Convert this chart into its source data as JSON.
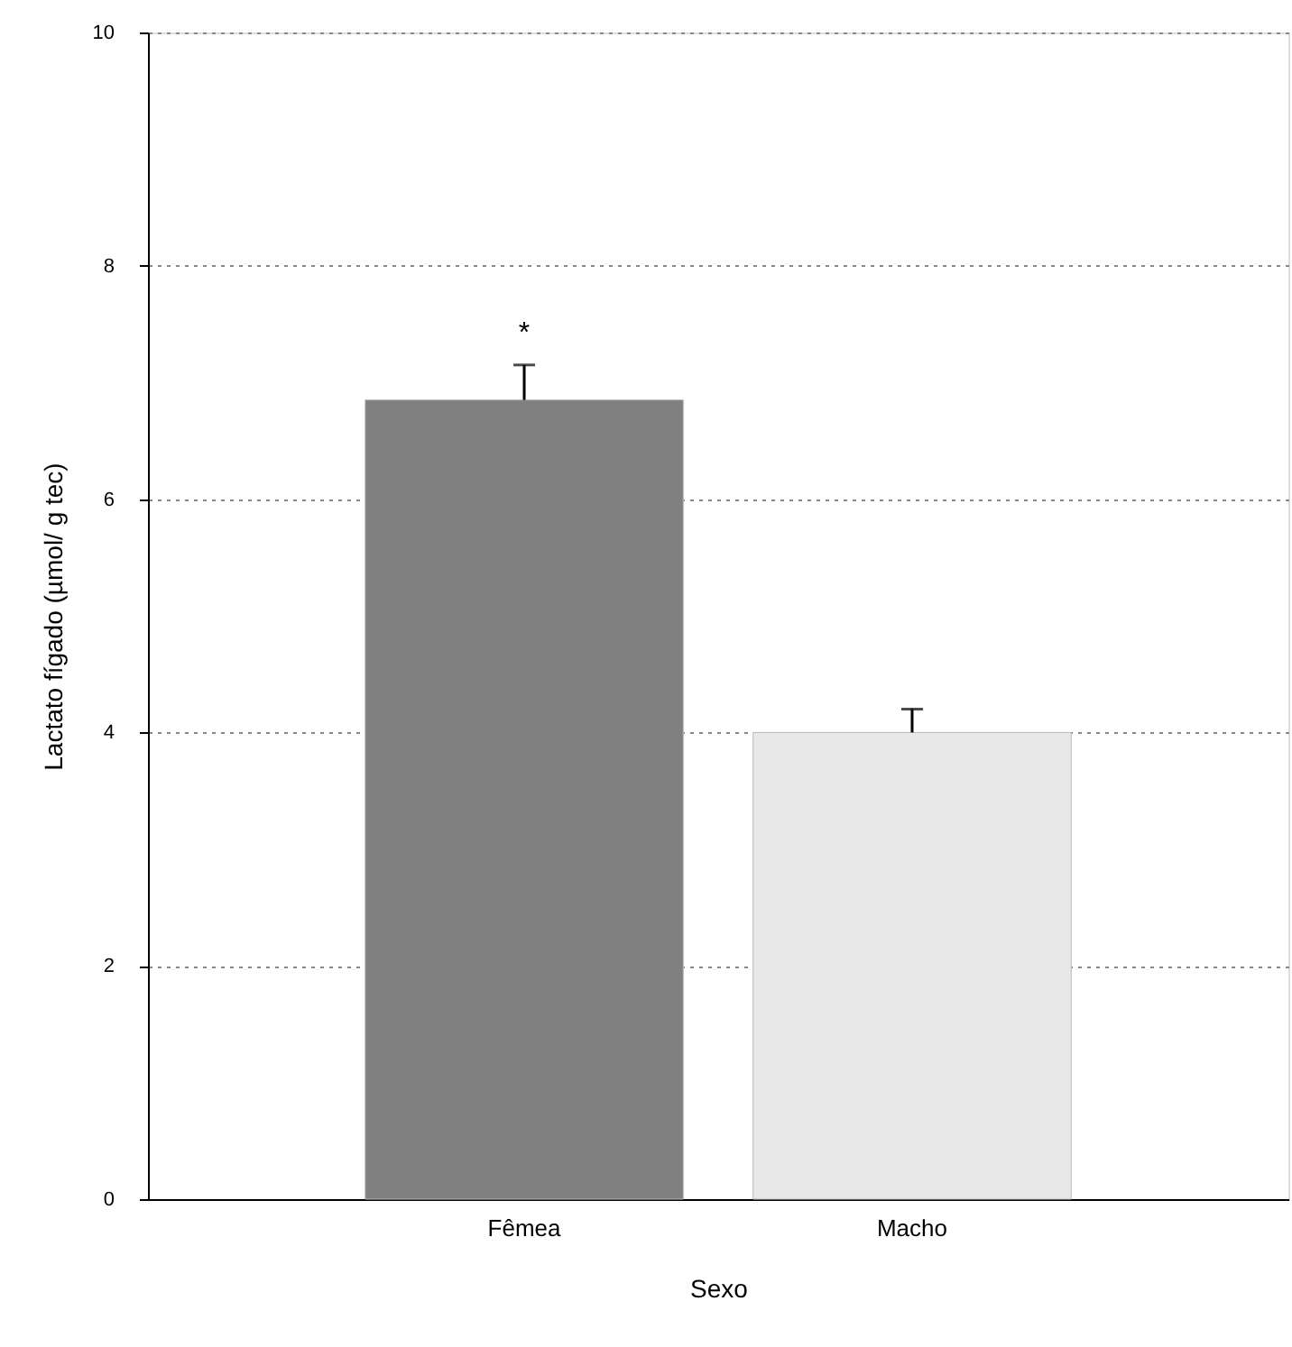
{
  "chart_data": {
    "type": "bar",
    "xlabel": "Sexo",
    "ylabel": "Lactato fígado (µmol/ g tec)",
    "categories": [
      "Fêmea",
      "Macho"
    ],
    "values": [
      6.85,
      4.0
    ],
    "colors": [
      "#808080",
      "#e8e8e8"
    ],
    "errors": [
      [
        6.85,
        7.15
      ],
      [
        4.0,
        4.2
      ]
    ],
    "ylim": [
      0,
      10
    ],
    "yticks": [
      0,
      2,
      4,
      6,
      8,
      10
    ],
    "grid": "y",
    "annotations": [
      {
        "text": "*",
        "x": "Fêmea",
        "y": 7.15
      }
    ]
  }
}
